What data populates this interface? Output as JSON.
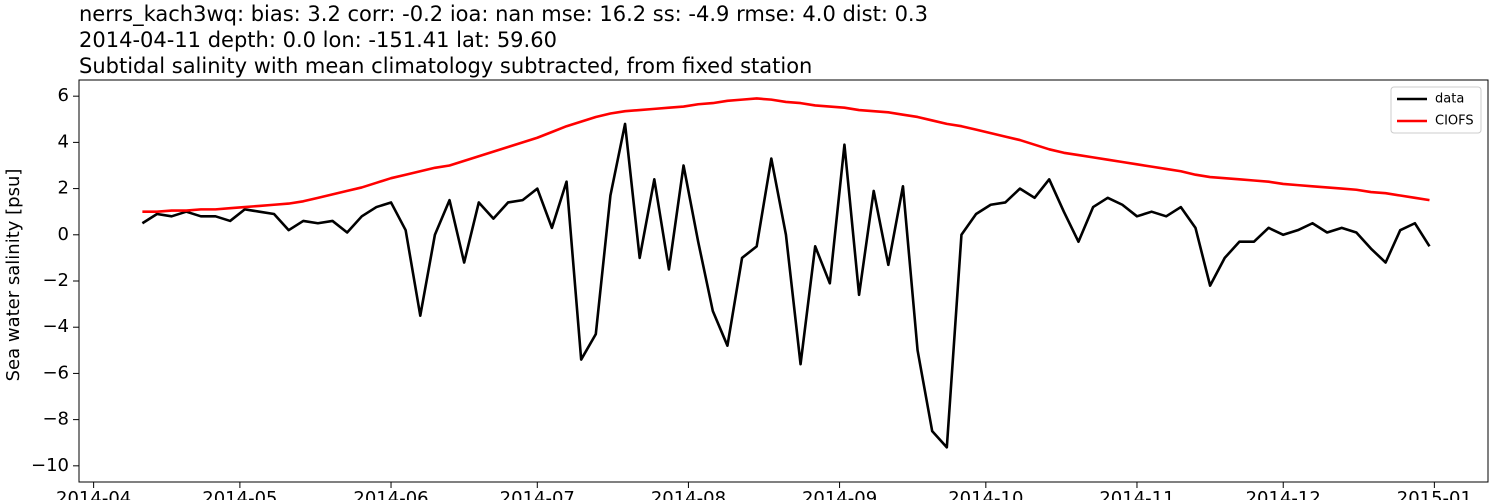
{
  "chart_data": {
    "type": "line",
    "title": "nerrs_kach3wq: bias: 3.2  corr: -0.2  ioa: nan  mse: 16.2  ss: -4.9  rmse: 4.0  dist: 0.3",
    "subtitle": "2014-04-11 depth: 0.0 lon: -151.41 lat: 59.60",
    "subtitle2": "Subtidal salinity with mean climatology subtracted, from fixed station",
    "ylabel": "Sea water salinity [psu]",
    "x": [
      "2014-04-11",
      "2014-04-14",
      "2014-04-17",
      "2014-04-20",
      "2014-04-23",
      "2014-04-26",
      "2014-04-29",
      "2014-05-02",
      "2014-05-05",
      "2014-05-08",
      "2014-05-11",
      "2014-05-14",
      "2014-05-17",
      "2014-05-20",
      "2014-05-23",
      "2014-05-26",
      "2014-05-29",
      "2014-06-01",
      "2014-06-04",
      "2014-06-07",
      "2014-06-10",
      "2014-06-13",
      "2014-06-16",
      "2014-06-19",
      "2014-06-22",
      "2014-06-25",
      "2014-06-28",
      "2014-07-01",
      "2014-07-04",
      "2014-07-07",
      "2014-07-10",
      "2014-07-13",
      "2014-07-16",
      "2014-07-19",
      "2014-07-22",
      "2014-07-25",
      "2014-07-28",
      "2014-07-31",
      "2014-08-03",
      "2014-08-06",
      "2014-08-09",
      "2014-08-12",
      "2014-08-15",
      "2014-08-18",
      "2014-08-21",
      "2014-08-24",
      "2014-08-27",
      "2014-08-30",
      "2014-09-02",
      "2014-09-05",
      "2014-09-08",
      "2014-09-11",
      "2014-09-14",
      "2014-09-17",
      "2014-09-20",
      "2014-09-23",
      "2014-09-26",
      "2014-09-29",
      "2014-10-02",
      "2014-10-05",
      "2014-10-08",
      "2014-10-11",
      "2014-10-14",
      "2014-10-17",
      "2014-10-20",
      "2014-10-23",
      "2014-10-26",
      "2014-10-29",
      "2014-11-01",
      "2014-11-04",
      "2014-11-07",
      "2014-11-10",
      "2014-11-13",
      "2014-11-16",
      "2014-11-19",
      "2014-11-22",
      "2014-11-25",
      "2014-11-28",
      "2014-12-01",
      "2014-12-04",
      "2014-12-07",
      "2014-12-10",
      "2014-12-13",
      "2014-12-16",
      "2014-12-19",
      "2014-12-22",
      "2014-12-25",
      "2014-12-28",
      "2014-12-31"
    ],
    "series": [
      {
        "name": "data",
        "color": "#000000",
        "values": [
          0.5,
          0.9,
          0.8,
          1.0,
          0.8,
          0.8,
          0.6,
          1.1,
          1.0,
          0.9,
          0.2,
          0.6,
          0.5,
          0.6,
          0.1,
          0.8,
          1.2,
          1.4,
          0.2,
          -3.5,
          0.0,
          1.5,
          -1.2,
          1.4,
          0.7,
          1.4,
          1.5,
          2.0,
          0.3,
          2.3,
          -5.4,
          -4.3,
          1.7,
          4.8,
          -1.0,
          2.4,
          -1.5,
          3.0,
          -0.3,
          -3.3,
          -4.8,
          -1.0,
          -0.5,
          3.3,
          0.0,
          -5.6,
          -0.5,
          -2.1,
          3.9,
          -2.6,
          1.9,
          -1.3,
          2.1,
          -5.0,
          -8.5,
          -9.2,
          0.0,
          0.9,
          1.3,
          1.4,
          2.0,
          1.6,
          2.4,
          1.0,
          -0.3,
          1.2,
          1.6,
          1.3,
          0.8,
          1.0,
          0.8,
          1.2,
          0.3,
          -2.2,
          -1.0,
          -0.3,
          -0.3,
          0.3,
          0.0,
          0.2,
          0.5,
          0.1,
          0.3,
          0.1,
          -0.6,
          -1.2,
          0.2,
          0.5,
          -0.5
        ]
      },
      {
        "name": "CIOFS",
        "color": "#ff0000",
        "values": [
          1.0,
          1.0,
          1.05,
          1.05,
          1.1,
          1.1,
          1.15,
          1.2,
          1.25,
          1.3,
          1.35,
          1.45,
          1.6,
          1.75,
          1.9,
          2.05,
          2.25,
          2.45,
          2.6,
          2.75,
          2.9,
          3.0,
          3.2,
          3.4,
          3.6,
          3.8,
          4.0,
          4.2,
          4.45,
          4.7,
          4.9,
          5.1,
          5.25,
          5.35,
          5.4,
          5.45,
          5.5,
          5.55,
          5.65,
          5.7,
          5.8,
          5.85,
          5.9,
          5.85,
          5.75,
          5.7,
          5.6,
          5.55,
          5.5,
          5.4,
          5.35,
          5.3,
          5.2,
          5.1,
          4.95,
          4.8,
          4.7,
          4.55,
          4.4,
          4.25,
          4.1,
          3.9,
          3.7,
          3.55,
          3.45,
          3.35,
          3.25,
          3.15,
          3.05,
          2.95,
          2.85,
          2.75,
          2.6,
          2.5,
          2.45,
          2.4,
          2.35,
          2.3,
          2.2,
          2.15,
          2.1,
          2.05,
          2.0,
          1.95,
          1.85,
          1.8,
          1.7,
          1.6,
          1.5
        ]
      }
    ],
    "xlim": [
      "2014-03-29",
      "2015-01-12"
    ],
    "xticks": [
      {
        "value": "2014-04-01",
        "label": "2014-04"
      },
      {
        "value": "2014-05-01",
        "label": "2014-05"
      },
      {
        "value": "2014-06-01",
        "label": "2014-06"
      },
      {
        "value": "2014-07-01",
        "label": "2014-07"
      },
      {
        "value": "2014-08-01",
        "label": "2014-08"
      },
      {
        "value": "2014-09-01",
        "label": "2014-09"
      },
      {
        "value": "2014-10-01",
        "label": "2014-10"
      },
      {
        "value": "2014-11-01",
        "label": "2014-11"
      },
      {
        "value": "2014-12-01",
        "label": "2014-12"
      },
      {
        "value": "2015-01-01",
        "label": "2015-01"
      }
    ],
    "ylim": [
      -10.7,
      6.7
    ],
    "yticks": [
      {
        "value": -10,
        "label": "−10"
      },
      {
        "value": -8,
        "label": "−8"
      },
      {
        "value": -6,
        "label": "−6"
      },
      {
        "value": -4,
        "label": "−4"
      },
      {
        "value": -2,
        "label": "−2"
      },
      0,
      2,
      4,
      6
    ],
    "grid": false,
    "legend": "upper right"
  }
}
